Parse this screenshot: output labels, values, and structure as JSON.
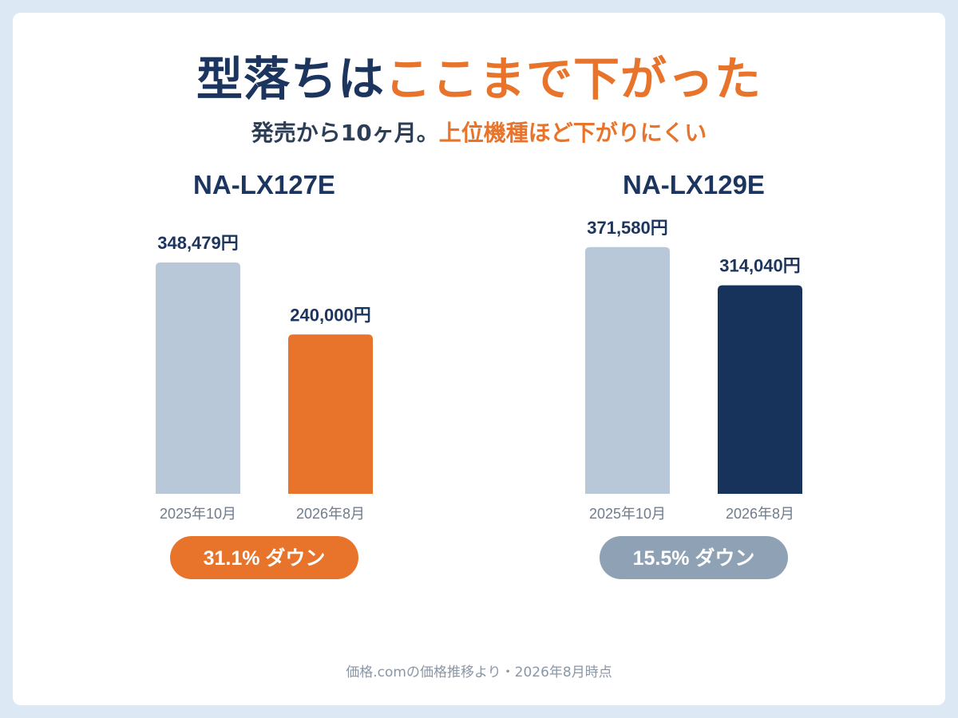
{
  "title": {
    "part1": "型落ちは",
    "part2": "ここまで下がった"
  },
  "subtitle": {
    "part1": "発売から10ヶ月。",
    "part2": "上位機種ほど下がりにくい"
  },
  "footer": "価格.comの価格推移より・2026年8月時点",
  "colors": {
    "navy": "#1c355e",
    "orange": "#e8742c",
    "light_bar": "#b8c8d8",
    "dark_bar": "#17325b",
    "badge_gray": "#8fa2b5",
    "tick_text": "#6f7c8c",
    "background": "#dce9f5"
  },
  "chart_data": [
    {
      "type": "bar",
      "title": "NA-LX127E",
      "categories": [
        "2025年10月",
        "2026年8月"
      ],
      "values": [
        348479,
        240000
      ],
      "value_labels": [
        "348,479円",
        "240,000円"
      ],
      "bar_colors": [
        "#b8c8d8",
        "#e8742c"
      ],
      "badge": "31.1% ダウン",
      "badge_color": "#e8742c"
    },
    {
      "type": "bar",
      "title": "NA-LX129E",
      "categories": [
        "2025年10月",
        "2026年8月"
      ],
      "values": [
        371580,
        314040
      ],
      "value_labels": [
        "371,580円",
        "314,040円"
      ],
      "bar_colors": [
        "#b8c8d8",
        "#17325b"
      ],
      "badge": "15.5% ダウン",
      "badge_color": "#8fa2b5"
    }
  ]
}
